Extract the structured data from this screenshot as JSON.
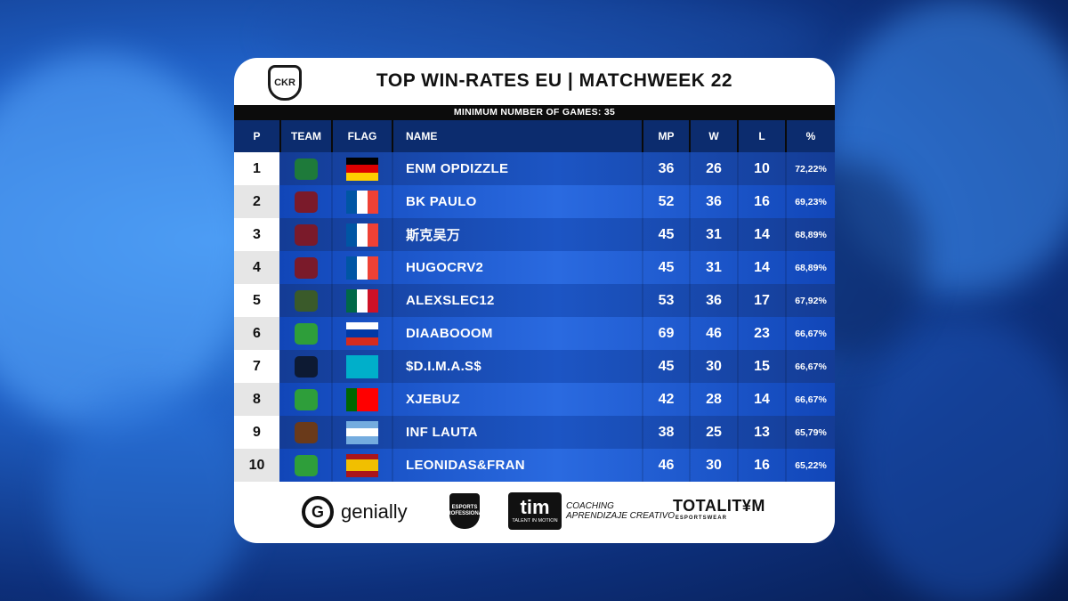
{
  "header": {
    "logo_text": "CKR",
    "title": "TOP WIN-RATES EU | MATCHWEEK 22",
    "subtitle": "MINIMUM NUMBER OF GAMES: 35"
  },
  "columns": {
    "p": "P",
    "team": "TEAM",
    "flag": "FLAG",
    "name": "NAME",
    "mp": "MP",
    "w": "W",
    "l": "L",
    "pct": "%"
  },
  "rows": [
    {
      "p": "1",
      "name": "ENM OPDIZZLE",
      "mp": "36",
      "w": "26",
      "l": "10",
      "pct": "72,22%",
      "team_icon": "enemy-team-icon",
      "flag": "germany-flag"
    },
    {
      "p": "2",
      "name": "BK PAULO",
      "mp": "52",
      "w": "36",
      "l": "16",
      "pct": "69,23%",
      "team_icon": "uranus-team-icon",
      "flag": "france-flag"
    },
    {
      "p": "3",
      "name": "斯克吴万",
      "mp": "45",
      "w": "31",
      "l": "14",
      "pct": "68,89%",
      "team_icon": "uranus-team-icon",
      "flag": "france-flag"
    },
    {
      "p": "4",
      "name": "HUGOCRV2",
      "mp": "45",
      "w": "31",
      "l": "14",
      "pct": "68,89%",
      "team_icon": "uranus-team-icon",
      "flag": "france-flag"
    },
    {
      "p": "5",
      "name": "ALEXSLEC12",
      "mp": "53",
      "w": "36",
      "l": "17",
      "pct": "67,92%",
      "team_icon": "school-team-icon",
      "flag": "mexico-flag"
    },
    {
      "p": "6",
      "name": "DIAABOOOM",
      "mp": "69",
      "w": "46",
      "l": "23",
      "pct": "66,67%",
      "team_icon": "green-team-icon",
      "flag": "russia-flag"
    },
    {
      "p": "7",
      "name": "$D.I.M.A.S$",
      "mp": "45",
      "w": "30",
      "l": "15",
      "pct": "66,67%",
      "team_icon": "liquid-team-icon",
      "flag": "kazakhstan-flag"
    },
    {
      "p": "8",
      "name": "XJEBUZ",
      "mp": "42",
      "w": "28",
      "l": "14",
      "pct": "66,67%",
      "team_icon": "green-team-icon",
      "flag": "portugal-flag"
    },
    {
      "p": "9",
      "name": "INF LAUTA",
      "mp": "38",
      "w": "25",
      "l": "13",
      "pct": "65,79%",
      "team_icon": "rotiseria-team-icon",
      "flag": "argentina-flag"
    },
    {
      "p": "10",
      "name": "LEONIDAS&FRAN",
      "mp": "46",
      "w": "30",
      "l": "16",
      "pct": "65,22%",
      "team_icon": "green-team-icon",
      "flag": "spain-flag"
    }
  ],
  "sponsors": {
    "genially": "genially",
    "genially_mark": "G",
    "esports": "ESPORTS PROFESSIONAL",
    "tim_big": "tim",
    "tim_small": "TALENT IN MOTION",
    "tim_line1": "COACHING",
    "tim_line2": "APRENDIZAJE CREATIVO",
    "totality": "TOTALIT¥M",
    "totality_sub": "ESPORTSWEAR"
  },
  "colors": {
    "header_bg": "#0c2c6e",
    "row_band": "#143c95",
    "row_band_alt": "#1146b8"
  }
}
